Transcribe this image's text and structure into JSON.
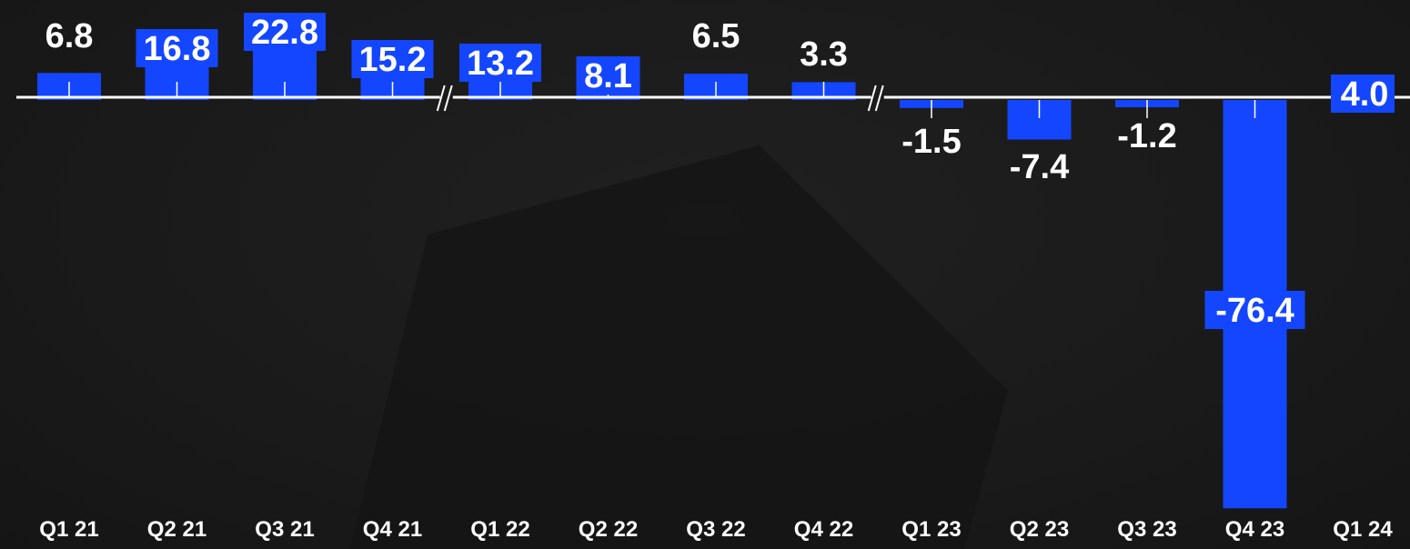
{
  "chart_data": {
    "type": "bar",
    "categories": [
      "Q1 21",
      "Q2 21",
      "Q3 21",
      "Q4 21",
      "Q1 22",
      "Q2 22",
      "Q3 22",
      "Q4 22",
      "Q1 23",
      "Q2 23",
      "Q3 23",
      "Q4 23",
      "Q1 24"
    ],
    "values": [
      6.8,
      16.8,
      22.8,
      15.2,
      13.2,
      8.1,
      6.5,
      3.3,
      -1.5,
      -7.4,
      -1.2,
      -76.4,
      4.0
    ],
    "value_labels": [
      "6.8",
      "16.8",
      "22.8",
      "15.2",
      "13.2",
      "8.1",
      "6.5",
      "3.3",
      "-1.5",
      "-7.4",
      "-1.2",
      "-76.4",
      "4.0"
    ],
    "title": "",
    "xlabel": "",
    "ylabel": "",
    "axis_breaks_after": [
      "Q4 21",
      "Q4 22"
    ],
    "grid": false,
    "legend": "none",
    "colors": {
      "bar": "#1446ff",
      "background": "#1a1a1a",
      "axis": "#ffffff",
      "text": "#ffffff"
    }
  }
}
